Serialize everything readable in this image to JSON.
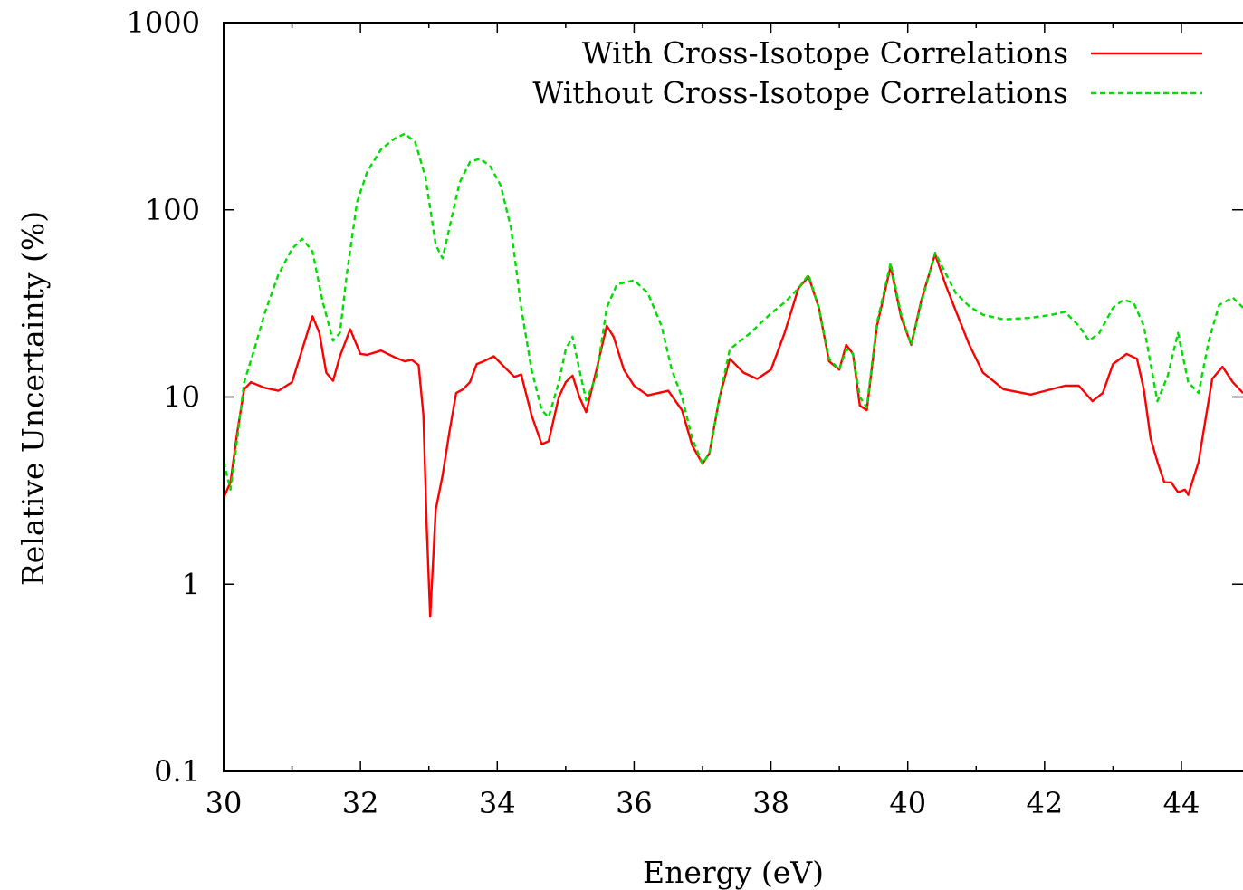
{
  "chart_data": {
    "type": "line",
    "xlabel": "Energy (eV)",
    "ylabel": "Relative Uncertainty (%)",
    "xlim": [
      30,
      44.9
    ],
    "ylim": [
      0.1,
      1000
    ],
    "yscale": "log",
    "grid": false,
    "legend_position": "top-right",
    "x_ticks": [
      30,
      32,
      34,
      36,
      38,
      40,
      42,
      44
    ],
    "y_ticks": [
      0.1,
      1,
      10,
      100,
      1000
    ],
    "x_tick_labels": [
      "30",
      "32",
      "34",
      "36",
      "38",
      "40",
      "42",
      "44"
    ],
    "y_tick_labels": [
      "0.1",
      "1",
      "10",
      "100",
      "1000"
    ],
    "series": [
      {
        "name": "With Cross-Isotope Correlations",
        "color": "#ff0000",
        "dash": "solid",
        "x": [
          30.0,
          30.1,
          30.2,
          30.3,
          30.4,
          30.6,
          30.8,
          31.0,
          31.15,
          31.3,
          31.4,
          31.5,
          31.6,
          31.7,
          31.85,
          32.0,
          32.1,
          32.3,
          32.5,
          32.65,
          32.75,
          32.85,
          32.92,
          32.97,
          33.02,
          33.1,
          33.2,
          33.3,
          33.4,
          33.5,
          33.6,
          33.7,
          33.8,
          33.95,
          34.1,
          34.25,
          34.35,
          34.5,
          34.65,
          34.75,
          34.9,
          35.0,
          35.1,
          35.2,
          35.3,
          35.45,
          35.6,
          35.7,
          35.85,
          36.0,
          36.2,
          36.5,
          36.7,
          36.85,
          37.0,
          37.1,
          37.25,
          37.4,
          37.6,
          37.8,
          38.0,
          38.2,
          38.4,
          38.55,
          38.7,
          38.85,
          39.0,
          39.1,
          39.2,
          39.3,
          39.4,
          39.55,
          39.75,
          39.9,
          40.05,
          40.2,
          40.4,
          40.55,
          40.7,
          40.9,
          41.1,
          41.4,
          41.8,
          42.1,
          42.3,
          42.5,
          42.7,
          42.85,
          43.0,
          43.2,
          43.35,
          43.45,
          43.55,
          43.65,
          43.75,
          43.85,
          43.95,
          44.05,
          44.1,
          44.25,
          44.35,
          44.45,
          44.6,
          44.75,
          44.9
        ],
        "y": [
          2.9,
          3.5,
          6.5,
          11.0,
          12.0,
          11.2,
          10.8,
          12.0,
          18.0,
          27.0,
          22.0,
          13.5,
          12.2,
          16.5,
          23.0,
          17.0,
          16.8,
          17.7,
          16.3,
          15.5,
          15.8,
          14.8,
          8.0,
          2.0,
          0.67,
          2.5,
          3.8,
          6.5,
          10.5,
          11.0,
          12.0,
          15.0,
          15.5,
          16.5,
          14.5,
          12.8,
          13.2,
          8.0,
          5.6,
          5.8,
          10.0,
          12.0,
          13.0,
          10.0,
          8.3,
          14.0,
          24.0,
          21.0,
          14.0,
          11.5,
          10.2,
          10.8,
          8.5,
          5.5,
          4.4,
          5.0,
          10.0,
          16.0,
          13.5,
          12.5,
          14.0,
          22.0,
          38.0,
          44.0,
          30.0,
          15.5,
          14.0,
          19.0,
          17.0,
          9.0,
          8.5,
          24.0,
          50.0,
          27.0,
          19.0,
          33.0,
          58.0,
          40.0,
          29.0,
          19.0,
          13.5,
          11.0,
          10.3,
          11.0,
          11.5,
          11.5,
          9.5,
          10.5,
          15.0,
          17.0,
          16.0,
          11.0,
          6.0,
          4.5,
          3.5,
          3.5,
          3.1,
          3.2,
          3.0,
          4.5,
          7.5,
          12.5,
          14.5,
          12.0,
          10.5
        ]
      },
      {
        "name": "Without Cross-Isotope Correlations",
        "color": "#00dd00",
        "dash": "dashed",
        "x": [
          30.0,
          30.1,
          30.2,
          30.3,
          30.45,
          30.6,
          30.8,
          31.0,
          31.15,
          31.3,
          31.45,
          31.6,
          31.7,
          31.8,
          31.95,
          32.1,
          32.3,
          32.5,
          32.65,
          32.8,
          32.95,
          33.1,
          33.2,
          33.3,
          33.45,
          33.6,
          33.75,
          33.9,
          34.05,
          34.2,
          34.35,
          34.5,
          34.65,
          34.75,
          34.9,
          35.0,
          35.1,
          35.2,
          35.3,
          35.45,
          35.6,
          35.75,
          36.0,
          36.2,
          36.4,
          36.55,
          36.7,
          36.85,
          37.0,
          37.1,
          37.25,
          37.4,
          37.7,
          38.0,
          38.2,
          38.4,
          38.55,
          38.7,
          38.85,
          39.0,
          39.1,
          39.2,
          39.3,
          39.4,
          39.55,
          39.75,
          39.9,
          40.05,
          40.2,
          40.4,
          40.55,
          40.7,
          40.9,
          41.1,
          41.4,
          41.8,
          42.1,
          42.3,
          42.5,
          42.65,
          42.8,
          43.0,
          43.15,
          43.3,
          43.45,
          43.55,
          43.65,
          43.8,
          43.95,
          44.1,
          44.25,
          44.4,
          44.55,
          44.75,
          44.9
        ],
        "y": [
          4.5,
          3.2,
          6.0,
          12.0,
          18.0,
          28.0,
          45.0,
          62.0,
          70.0,
          60.0,
          32.0,
          20.0,
          22.0,
          45.0,
          110.0,
          160.0,
          210.0,
          240.0,
          255.0,
          230.0,
          150.0,
          65.0,
          55.0,
          80.0,
          140.0,
          180.0,
          188.0,
          170.0,
          135.0,
          80.0,
          30.0,
          14.0,
          8.5,
          7.8,
          12.0,
          18.0,
          21.0,
          14.0,
          9.6,
          13.0,
          30.0,
          40.0,
          42.0,
          36.0,
          24.0,
          14.0,
          10.0,
          6.0,
          4.4,
          5.0,
          10.0,
          18.0,
          22.0,
          28.0,
          32.0,
          38.0,
          45.0,
          30.0,
          16.0,
          14.0,
          18.0,
          17.0,
          10.0,
          8.8,
          25.0,
          52.0,
          28.0,
          19.0,
          32.0,
          59.0,
          46.0,
          36.0,
          30.5,
          27.5,
          26.0,
          26.5,
          27.5,
          28.5,
          24.0,
          20.0,
          22.0,
          30.0,
          33.0,
          32.0,
          24.0,
          15.0,
          9.5,
          13.0,
          22.0,
          12.0,
          10.5,
          20.0,
          31.0,
          34.0,
          30.0
        ]
      }
    ]
  }
}
